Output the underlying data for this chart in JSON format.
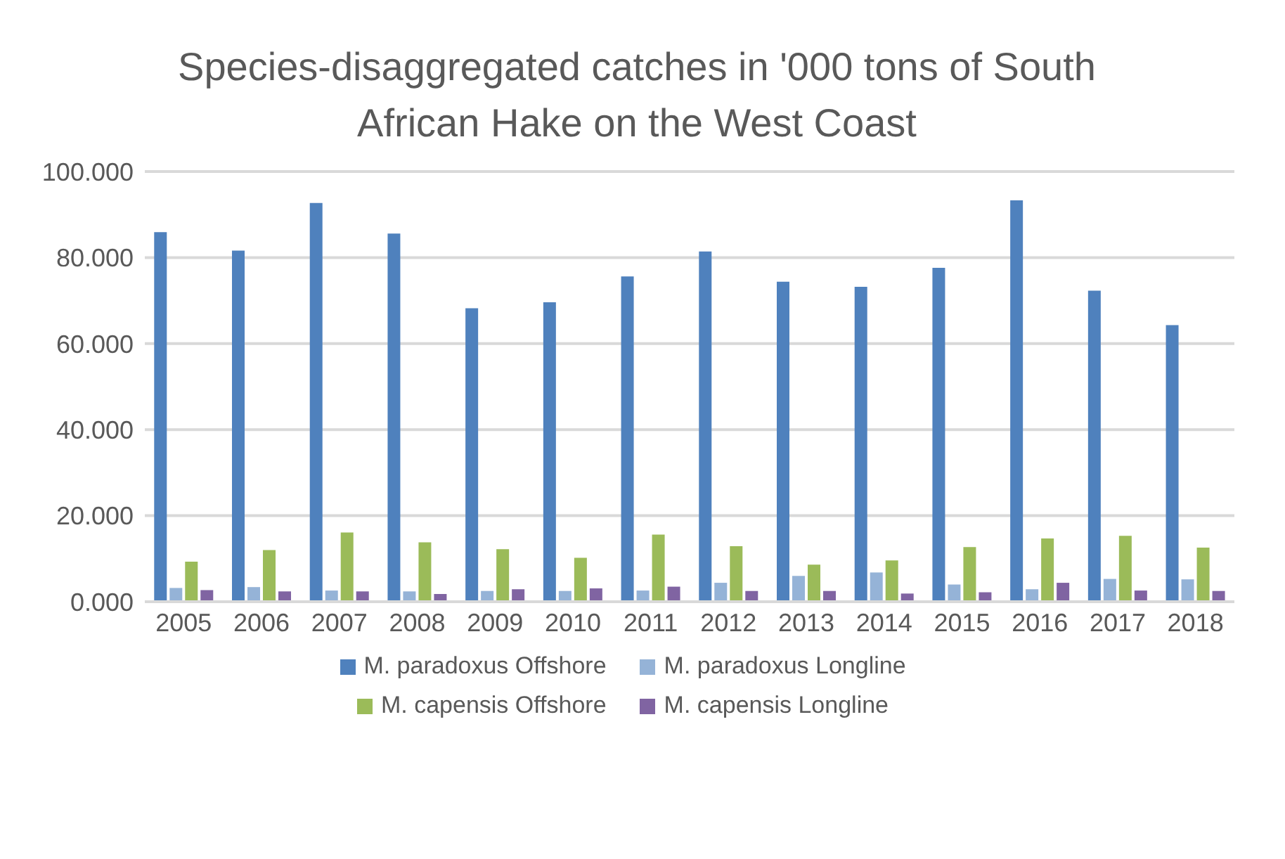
{
  "chart_data": {
    "type": "bar",
    "title": "Species-disaggregated catches in '000 tons of South African Hake on the West Coast",
    "categories": [
      "2005",
      "2006",
      "2007",
      "2008",
      "2009",
      "2010",
      "2011",
      "2012",
      "2013",
      "2014",
      "2015",
      "2016",
      "2017",
      "2018"
    ],
    "series": [
      {
        "name": "M. paradoxus Offshore",
        "color": "#4f81bd",
        "values": [
          85.9,
          81.6,
          92.7,
          85.6,
          68.2,
          69.6,
          75.6,
          81.4,
          74.4,
          73.2,
          77.6,
          93.3,
          72.3,
          64.3
        ]
      },
      {
        "name": "M. paradoxus Longline",
        "color": "#95b3d7",
        "values": [
          3.2,
          3.4,
          2.6,
          2.4,
          2.5,
          2.5,
          2.6,
          4.4,
          6.0,
          6.8,
          4.0,
          2.9,
          5.3,
          5.2
        ]
      },
      {
        "name": "M. capensis Offshore",
        "color": "#9bbb59",
        "values": [
          9.3,
          12.0,
          16.1,
          13.8,
          12.2,
          10.2,
          15.6,
          12.9,
          8.6,
          9.6,
          12.7,
          14.7,
          15.3,
          12.6
        ]
      },
      {
        "name": "M. capensis Longline",
        "color": "#8064a2",
        "values": [
          2.7,
          2.4,
          2.4,
          1.8,
          2.9,
          3.1,
          3.5,
          2.5,
          2.5,
          1.9,
          2.2,
          4.4,
          2.6,
          2.5
        ]
      }
    ],
    "ylim": [
      0,
      100
    ],
    "yticks": [
      {
        "value": 0,
        "label": "0.000"
      },
      {
        "value": 20,
        "label": "20.000"
      },
      {
        "value": 40,
        "label": "40.000"
      },
      {
        "value": 60,
        "label": "60.000"
      },
      {
        "value": 80,
        "label": "80.000"
      },
      {
        "value": 100,
        "label": "100.000"
      }
    ],
    "grid": "y",
    "legend": "bottom"
  }
}
